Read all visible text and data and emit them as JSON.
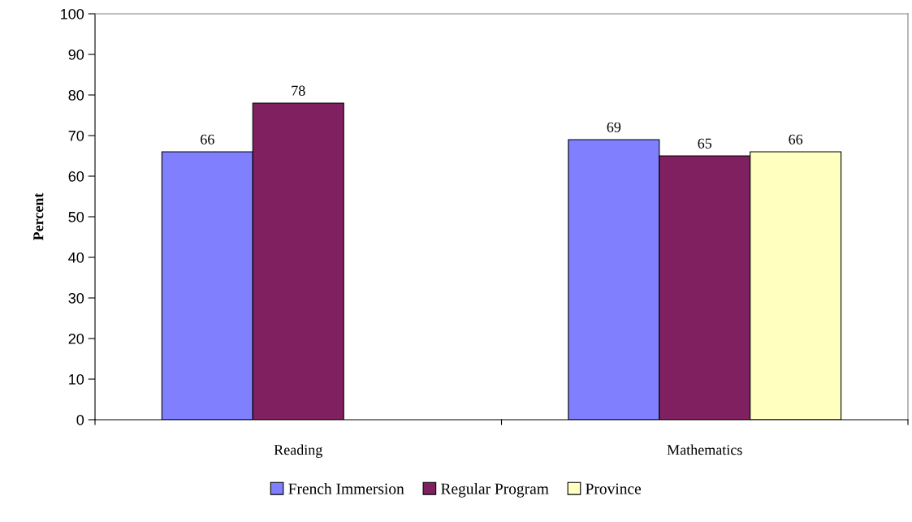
{
  "chart_data": {
    "type": "bar",
    "ylabel": "Percent",
    "categories": [
      "Reading",
      "Mathematics"
    ],
    "series": [
      {
        "name": "French Immersion",
        "color": "#8080ff",
        "values": [
          66,
          69
        ]
      },
      {
        "name": "Regular Program",
        "color": "#802060",
        "values": [
          78,
          65
        ]
      },
      {
        "name": "Province",
        "color": "#ffffc0",
        "values": [
          null,
          66
        ]
      }
    ],
    "ylim": [
      0,
      100
    ],
    "yticks": [
      0,
      10,
      20,
      30,
      40,
      50,
      60,
      70,
      80,
      90,
      100
    ],
    "data_labels": true,
    "legend": "bottom",
    "grid": false
  }
}
